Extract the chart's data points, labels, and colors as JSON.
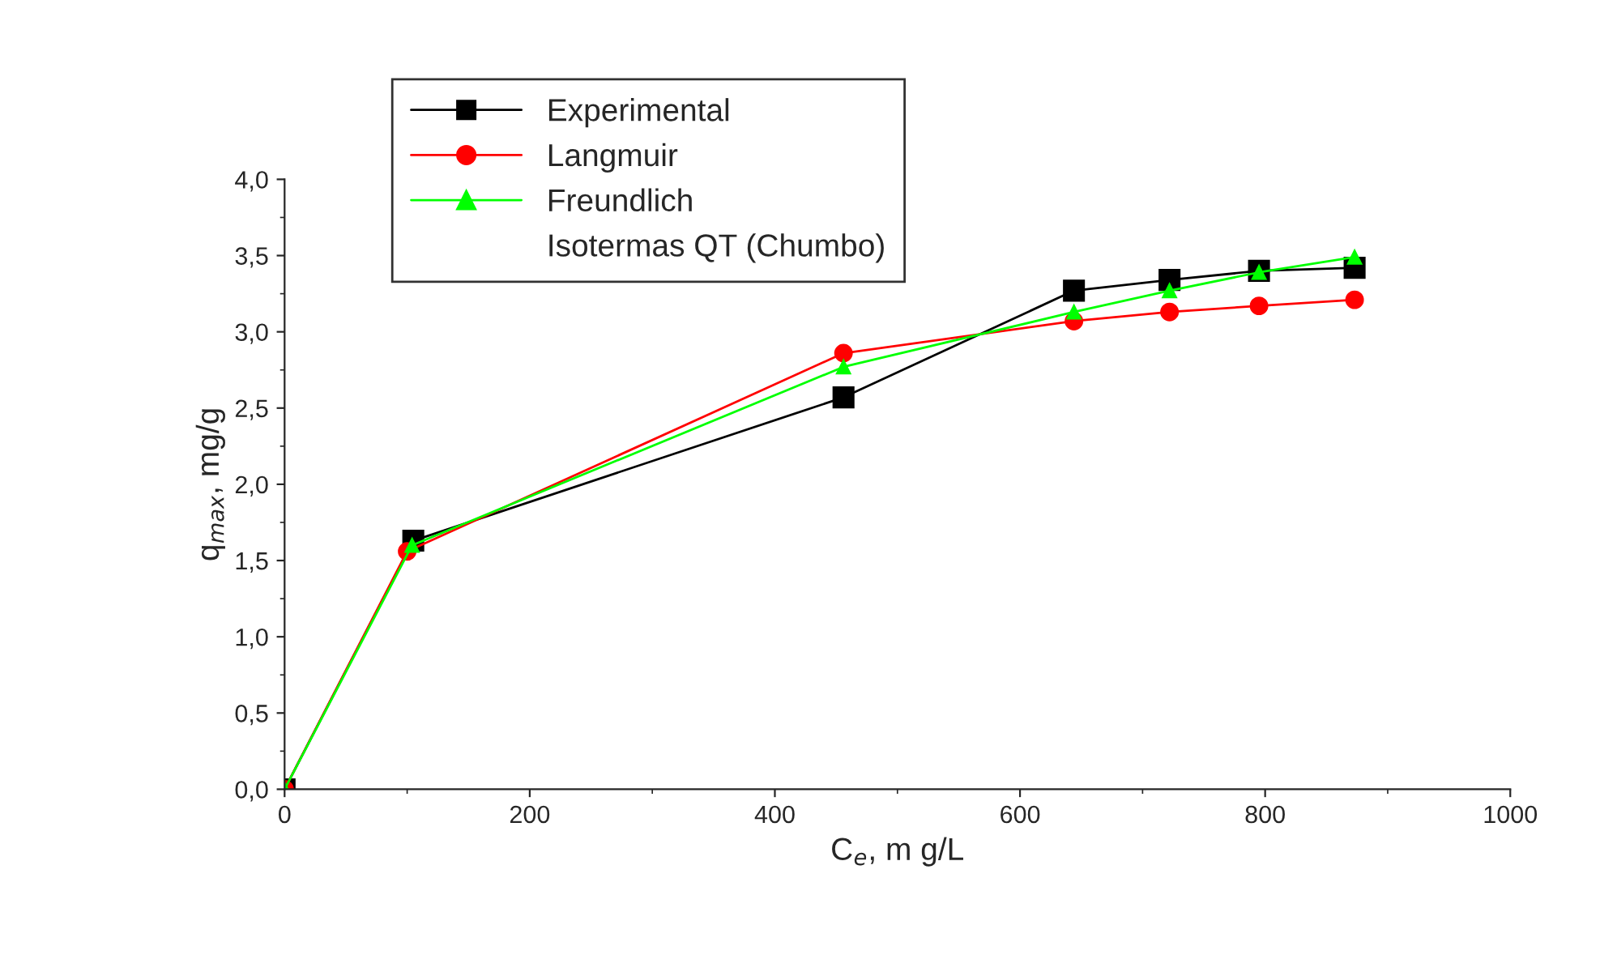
{
  "chart_data": {
    "type": "line",
    "xlabel": "C$_{e}$, m g/L",
    "ylabel": "q$_{max}$, mg/g",
    "legend_title": "Isotermas QT (Chumbo)",
    "series": [
      {
        "name": "Experimental",
        "color": "#000000",
        "marker": "square",
        "x": [
          0,
          105,
          456,
          644,
          722,
          795,
          873
        ],
        "values": [
          0,
          1.63,
          2.57,
          3.27,
          3.34,
          3.4,
          3.42
        ]
      },
      {
        "name": "Langmuir",
        "color": "#ff0000",
        "marker": "circle",
        "x": [
          0,
          100,
          456,
          644,
          722,
          795,
          873
        ],
        "values": [
          0,
          1.56,
          2.86,
          3.07,
          3.13,
          3.17,
          3.21
        ]
      },
      {
        "name": "Freundlich",
        "color": "#00ff00",
        "marker": "triangle",
        "x": [
          0,
          104,
          456,
          644,
          722,
          795,
          873
        ],
        "values": [
          0,
          1.6,
          2.77,
          3.13,
          3.27,
          3.39,
          3.49
        ]
      }
    ],
    "xlim": [
      0,
      1000
    ],
    "xticks": [
      0,
      200,
      400,
      600,
      800,
      1000
    ],
    "ylim": [
      0,
      4
    ],
    "yticks": [
      {
        "value": 0,
        "label": "0,0"
      },
      {
        "value": 0.5,
        "label": "0,5"
      },
      {
        "value": 1,
        "label": "1,0"
      },
      {
        "value": 1.5,
        "label": "1,5"
      },
      {
        "value": 2,
        "label": "2,0"
      },
      {
        "value": 2.5,
        "label": "2,5"
      },
      {
        "value": 3,
        "label": "3,0"
      },
      {
        "value": 3.5,
        "label": "3,5"
      },
      {
        "value": 4,
        "label": "4,0"
      }
    ],
    "grid": false,
    "legend": "top left",
    "line_style": "solid"
  }
}
